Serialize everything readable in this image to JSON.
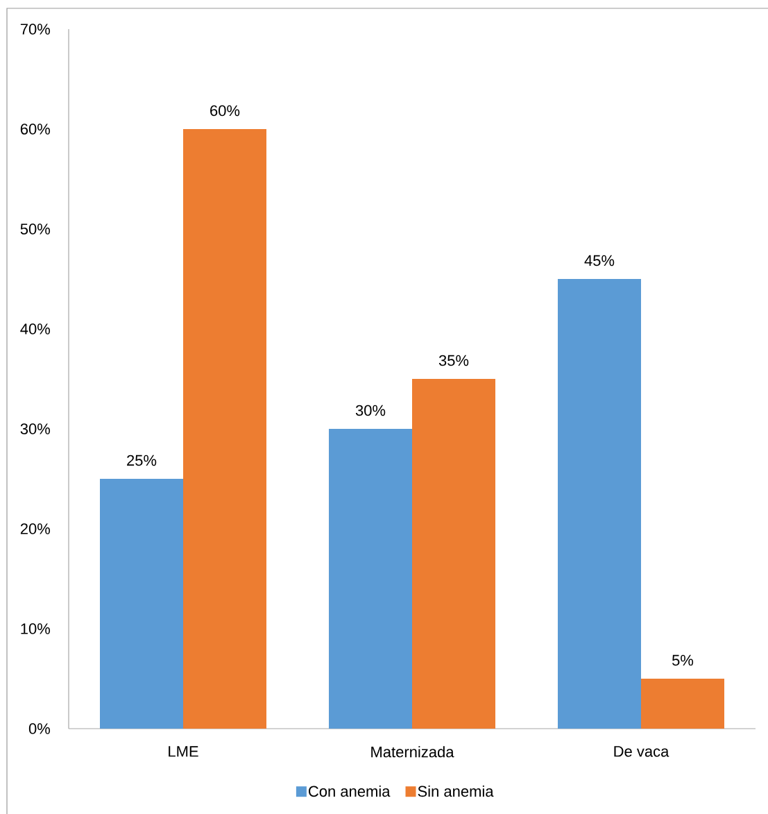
{
  "chart_data": {
    "type": "bar",
    "categories": [
      "LME",
      "Maternizada",
      "De vaca"
    ],
    "series": [
      {
        "name": "Con anemia",
        "color": "#5b9bd5",
        "values": [
          25,
          30,
          45
        ],
        "value_labels": [
          "25%",
          "30%",
          "45%"
        ]
      },
      {
        "name": "Sin anemia",
        "color": "#ed7d31",
        "values": [
          60,
          35,
          5
        ],
        "value_labels": [
          "60%",
          "35%",
          "5%"
        ]
      }
    ],
    "ylim": [
      0,
      70
    ],
    "yticks": [
      {
        "value": 0,
        "label": "0%"
      },
      {
        "value": 10,
        "label": "10%"
      },
      {
        "value": 20,
        "label": "20%"
      },
      {
        "value": 30,
        "label": "30%"
      },
      {
        "value": 40,
        "label": "40%"
      },
      {
        "value": 50,
        "label": "50%"
      },
      {
        "value": 60,
        "label": "60%"
      },
      {
        "value": 70,
        "label": "70%"
      }
    ],
    "legend": "bottom"
  }
}
